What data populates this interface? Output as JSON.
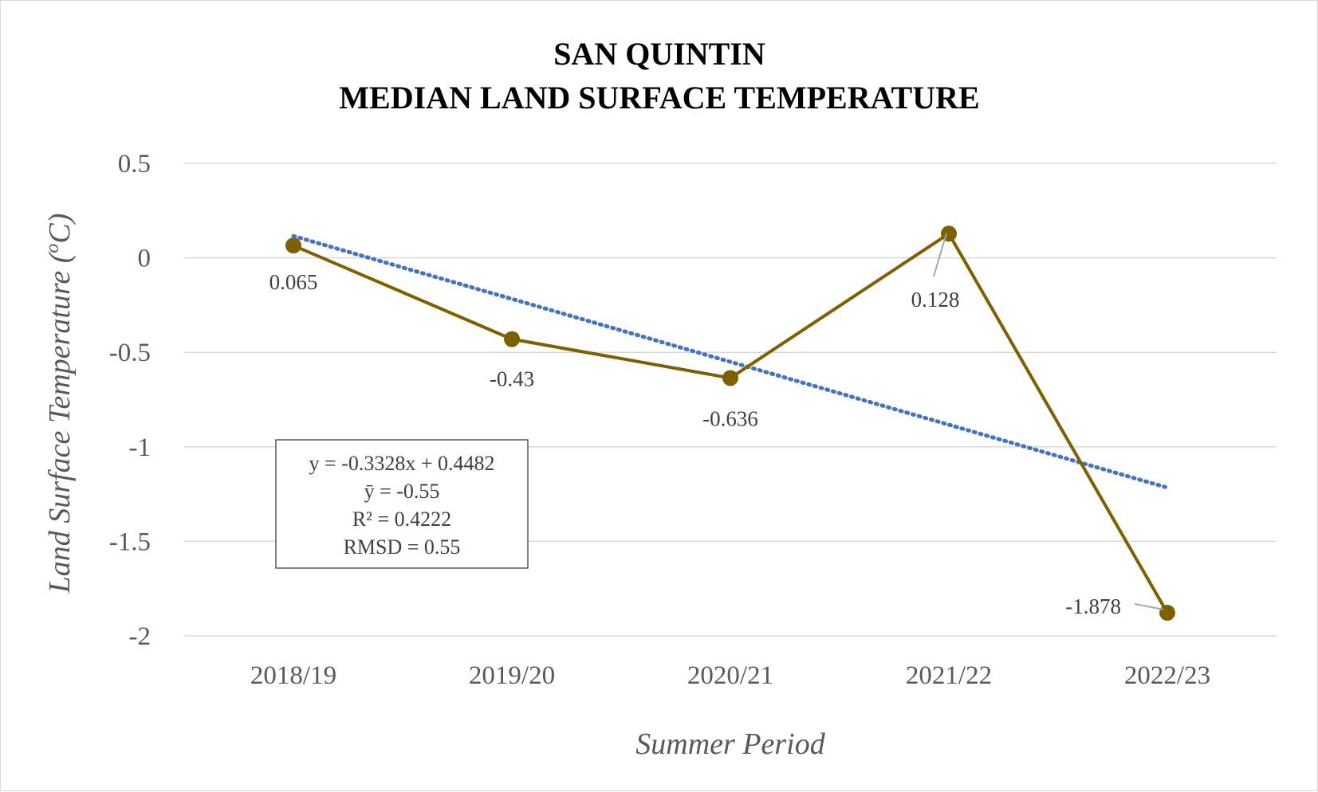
{
  "chart_data": {
    "type": "line",
    "title_lines": [
      "SAN QUINTIN",
      "MEDIAN LAND SURFACE TEMPERATURE"
    ],
    "xlabel": "Summer Period",
    "ylabel_prefix": "Land Surface Temperature (",
    "ylabel_unit_sup": "o",
    "ylabel_unit": "C)",
    "categories": [
      "2018/19",
      "2019/20",
      "2020/21",
      "2021/22",
      "2022/23"
    ],
    "series": [
      {
        "values": [
          0.065,
          -0.43,
          -0.636,
          0.128,
          -1.878
        ],
        "labels": [
          "0.065",
          "-0.43",
          "-0.636",
          "0.128",
          "-1.878"
        ],
        "color": "#7f6000"
      }
    ],
    "trendline": {
      "slope": -0.3328,
      "intercept": 0.4482,
      "color": "#4472c4",
      "style": "dotted"
    },
    "ylim": [
      -2,
      0.5
    ],
    "yticks": [
      0.5,
      0,
      -0.5,
      -1,
      -1.5,
      -2
    ],
    "ytick_labels": [
      "0.5",
      "0",
      "-0.5",
      "-1",
      "-1.5",
      "-2"
    ],
    "grid": true,
    "gridline_color": "#d9d9d9",
    "stats_box": [
      "y = -0.3328x + 0.4482",
      "ȳ = -0.55",
      "R² = 0.4222",
      "RMSD = 0.55"
    ]
  }
}
